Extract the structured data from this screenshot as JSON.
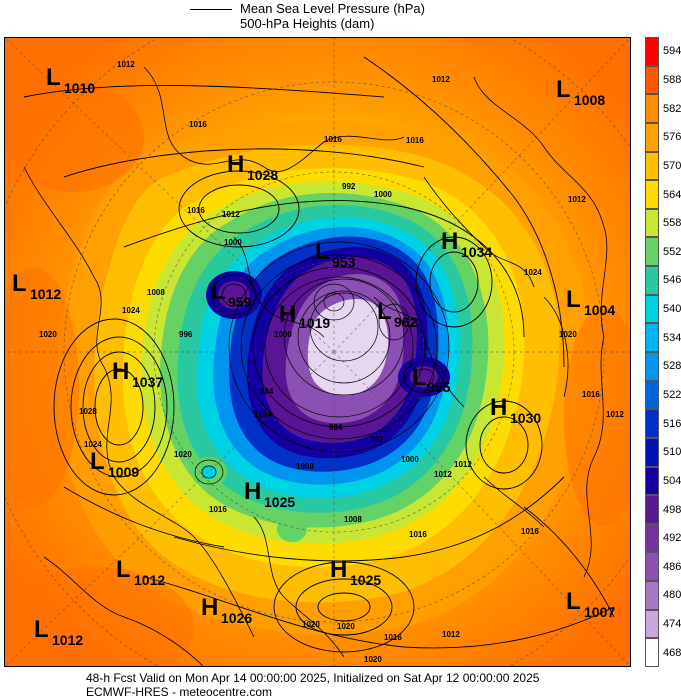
{
  "legend": {
    "mslp_label": "Mean Sea Level Pressure (hPa)",
    "heights_label": "500-hPa Heights (dam)"
  },
  "colorbar": {
    "labels": [
      "594",
      "588",
      "582",
      "576",
      "570",
      "564",
      "558",
      "552",
      "546",
      "540",
      "534",
      "528",
      "522",
      "516",
      "510",
      "504",
      "498",
      "492",
      "486",
      "480",
      "474",
      "468"
    ],
    "colors": [
      "#ff0000",
      "#ff5a00",
      "#ff8c00",
      "#ffa000",
      "#ffbe00",
      "#ffdc00",
      "#c8e632",
      "#64d264",
      "#28c8a0",
      "#00d2e6",
      "#00b4f0",
      "#0096f0",
      "#0064dc",
      "#0032c8",
      "#0014b4",
      "#1400a0",
      "#5a1496",
      "#7832a0",
      "#8c50b4",
      "#a878c8",
      "#c8a8dc",
      "#ffffff"
    ]
  },
  "map": {
    "systems": [
      {
        "type": "L",
        "value": "1010"
      },
      {
        "type": "L",
        "value": "1008"
      },
      {
        "type": "H",
        "value": "1028"
      },
      {
        "type": "H",
        "value": "1034"
      },
      {
        "type": "L",
        "value": "1012"
      },
      {
        "type": "L",
        "value": "953"
      },
      {
        "type": "L",
        "value": "959"
      },
      {
        "type": "H",
        "value": "1019"
      },
      {
        "type": "L",
        "value": "962"
      },
      {
        "type": "L",
        "value": "1004"
      },
      {
        "type": "H",
        "value": "1037"
      },
      {
        "type": "L",
        "value": "955"
      },
      {
        "type": "H",
        "value": "1030"
      },
      {
        "type": "L",
        "value": "1009"
      },
      {
        "type": "H",
        "value": "1025"
      },
      {
        "type": "L",
        "value": "1012"
      },
      {
        "type": "H",
        "value": "1025"
      },
      {
        "type": "H",
        "value": "1026"
      },
      {
        "type": "L",
        "value": "1012"
      },
      {
        "type": "L",
        "value": "1007"
      }
    ],
    "isobar_labels": [
      "1012",
      "1016",
      "1012",
      "1016",
      "1016",
      "1012",
      "1016",
      "1012",
      "1020",
      "1024",
      "1028",
      "1024",
      "1020",
      "1016",
      "1008",
      "1000",
      "992",
      "1000",
      "984",
      "984",
      "992",
      "1000",
      "1016",
      "1020",
      "1024",
      "1016",
      "1012",
      "1008",
      "1012",
      "1020",
      "1008",
      "1004",
      "1000",
      "996",
      "1016",
      "1012",
      "1020",
      "1020",
      "1016",
      "1012"
    ],
    "colors": {
      "ocean": "#ff8c00",
      "land_edge": "#ff5a00",
      "low_core": "#ffffff"
    }
  },
  "footer": {
    "line1": "48-h Fcst Valid on Mon Apr 14 00:00:00 2025, Initialized on Sat Apr 12 00:00:00 2025",
    "line2": "ECMWF-HRES - meteocentre.com"
  }
}
